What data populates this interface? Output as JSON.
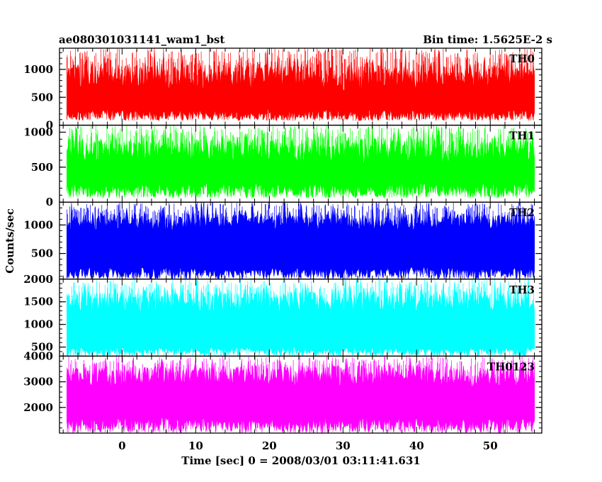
{
  "header": {
    "left_title": "ae080301031141_wam1_bst",
    "right_title": "Bin time: 1.5625E-2 s"
  },
  "chart_data": {
    "type": "line",
    "title": "ae080301031141_wam1_bst",
    "subtitle": "Bin time: 1.5625E-2 s",
    "xlabel": "Time [sec] 0 = 2008/03/01 03:11:41.631",
    "ylabel": "Counts/sec",
    "xlim": [
      -8.5,
      57
    ],
    "x_range": [
      -7.5,
      56
    ],
    "x_ticks": [
      0,
      10,
      20,
      30,
      40,
      50
    ],
    "x_minor_step": 2,
    "grid": false,
    "panels": [
      {
        "name": "TH0",
        "color": "#ff0000",
        "ylim": [
          0,
          1380
        ],
        "y_ticks": [
          0,
          500,
          1000
        ],
        "y_minor_step": 100,
        "baseline_range": [
          80,
          280
        ],
        "median_range": [
          420,
          620
        ],
        "peak_range": [
          900,
          1380
        ]
      },
      {
        "name": "TH1",
        "color": "#00ff00",
        "ylim": [
          0,
          1100
        ],
        "y_ticks": [
          0,
          500,
          1000
        ],
        "y_minor_step": 100,
        "baseline_range": [
          60,
          280
        ],
        "median_range": [
          360,
          560
        ],
        "peak_range": [
          800,
          1100
        ]
      },
      {
        "name": "TH2",
        "color": "#0000ff",
        "ylim": [
          50,
          1400
        ],
        "y_ticks": [
          500,
          1000
        ],
        "y_minor_step": 100,
        "baseline_range": [
          50,
          260
        ],
        "median_range": [
          650,
          900
        ],
        "peak_range": [
          1050,
          1400
        ]
      },
      {
        "name": "TH3",
        "color": "#00ffff",
        "ylim": [
          300,
          2000
        ],
        "y_ticks": [
          500,
          1000,
          1500,
          2000
        ],
        "y_minor_step": 100,
        "baseline_range": [
          300,
          500
        ],
        "median_range": [
          900,
          1250
        ],
        "peak_range": [
          1550,
          2000
        ]
      },
      {
        "name": "TH0123",
        "color": "#ff00ff",
        "ylim": [
          1000,
          4000
        ],
        "y_ticks": [
          2000,
          3000,
          4000
        ],
        "y_minor_step": 200,
        "baseline_range": [
          1000,
          1600
        ],
        "median_range": [
          2200,
          2800
        ],
        "peak_range": [
          3400,
          4000
        ]
      }
    ]
  }
}
